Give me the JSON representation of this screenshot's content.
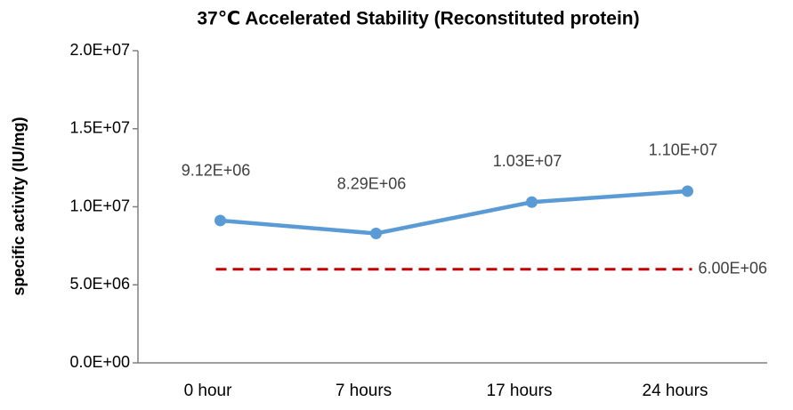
{
  "chart_data": {
    "type": "line",
    "title": "37℃ Accelerated  Stability (Reconstituted protein)",
    "y_label": "specific activity (IU/mg)",
    "categories": [
      "0 hour",
      "7 hours",
      "17 hours",
      "24 hours"
    ],
    "values": [
      9120000,
      8290000,
      10300000,
      11000000
    ],
    "value_labels": [
      "9.12E+06",
      "8.29E+06",
      "1.03E+07",
      "1.10E+07"
    ],
    "color": "#5b9bd5",
    "threshold": {
      "value": 6000000,
      "value_label": "6.00E+06",
      "color": "#c00000",
      "style": "dashed"
    },
    "ylim": [
      0,
      20000000
    ],
    "yticks": [
      {
        "value": 0,
        "label": "0.0E+00"
      },
      {
        "value": 5000000,
        "label": "5.0E+06"
      },
      {
        "value": 10000000,
        "label": "1.0E+07"
      },
      {
        "value": 15000000,
        "label": "1.5E+07"
      },
      {
        "value": 20000000,
        "label": "2.0E+07"
      }
    ],
    "grid": false
  }
}
